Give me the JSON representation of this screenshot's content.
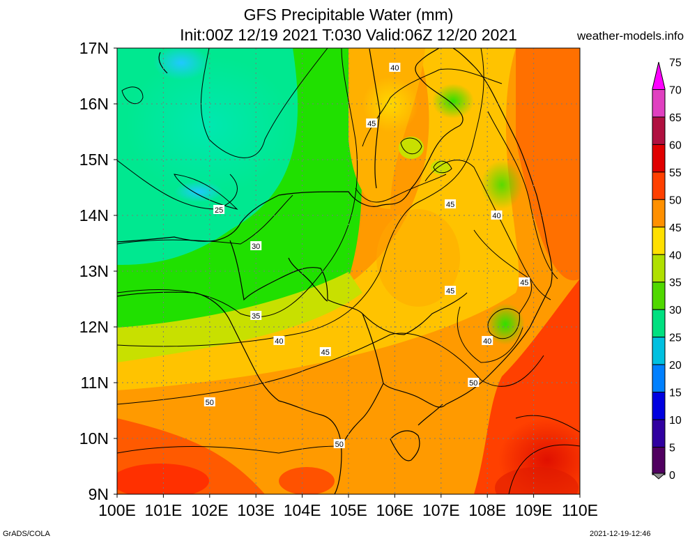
{
  "header": {
    "title": "GFS Precipitable Water (mm)",
    "subtitle": "Init:00Z 12/19 2021 T:030 Valid:06Z 12/20 2021",
    "site": "weather-models.info"
  },
  "map": {
    "lat_labels": [
      "17N",
      "16N",
      "15N",
      "14N",
      "13N",
      "12N",
      "11N",
      "10N",
      "9N"
    ],
    "lon_labels": [
      "100E",
      "101E",
      "102E",
      "103E",
      "104E",
      "105E",
      "106E",
      "107E",
      "108E",
      "109E",
      "110E"
    ],
    "lat_range": [
      9,
      17
    ],
    "lon_range": [
      100,
      110
    ],
    "contour_labels": [
      {
        "text": "40",
        "lon": 106.0,
        "lat": 16.65
      },
      {
        "text": "45",
        "lon": 105.5,
        "lat": 15.65
      },
      {
        "text": "25",
        "lon": 102.2,
        "lat": 14.1
      },
      {
        "text": "30",
        "lon": 103.0,
        "lat": 13.45
      },
      {
        "text": "45",
        "lon": 107.2,
        "lat": 14.2
      },
      {
        "text": "40",
        "lon": 108.2,
        "lat": 14.0
      },
      {
        "text": "45",
        "lon": 107.2,
        "lat": 12.65
      },
      {
        "text": "45",
        "lon": 108.8,
        "lat": 12.8
      },
      {
        "text": "35",
        "lon": 103.0,
        "lat": 12.2
      },
      {
        "text": "40",
        "lon": 103.5,
        "lat": 11.75
      },
      {
        "text": "40",
        "lon": 108.0,
        "lat": 11.75
      },
      {
        "text": "45",
        "lon": 104.5,
        "lat": 11.55
      },
      {
        "text": "50",
        "lon": 107.7,
        "lat": 11.0
      },
      {
        "text": "50",
        "lon": 102.0,
        "lat": 10.65
      },
      {
        "text": "50",
        "lon": 104.8,
        "lat": 9.9
      }
    ]
  },
  "colorbar": {
    "levels": [
      "75",
      "70",
      "65",
      "60",
      "55",
      "50",
      "45",
      "40",
      "35",
      "30",
      "25",
      "20",
      "15",
      "10",
      "5",
      "0"
    ],
    "colors": [
      "#ff00ff",
      "#e040c0",
      "#b01040",
      "#e00000",
      "#ff4000",
      "#ff9000",
      "#ffe000",
      "#b0e000",
      "#50d800",
      "#00e080",
      "#00c0e0",
      "#0080ff",
      "#0000e0",
      "#3000a0",
      "#500060",
      "#909090"
    ]
  },
  "footer": {
    "left": "GrADS/COLA",
    "right": "2021-12-19-12:46"
  }
}
